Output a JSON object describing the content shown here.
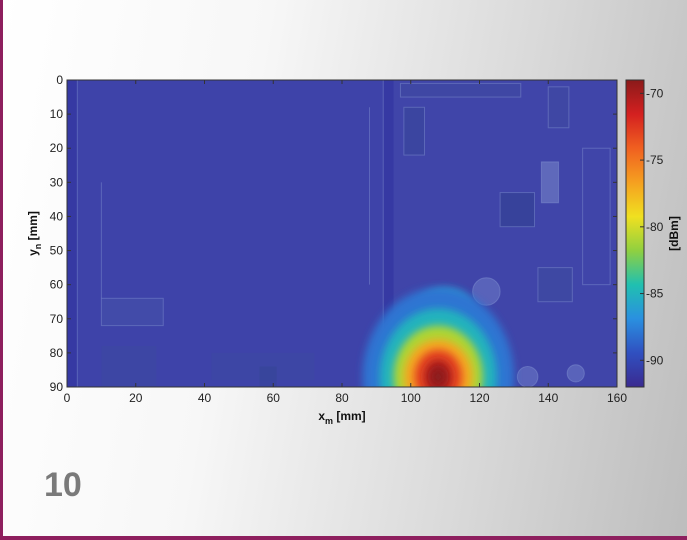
{
  "page": {
    "number": "10",
    "frame_color": "#8e1f5e"
  },
  "chart_data": {
    "type": "heatmap",
    "title": "",
    "xlabel": {
      "main": "x",
      "sub": "m",
      "unit": "[mm]"
    },
    "ylabel": {
      "main": "y",
      "sub": "n",
      "unit": "[mm]"
    },
    "xlim": [
      0,
      160
    ],
    "ylim": [
      0,
      90
    ],
    "y_direction": "down",
    "xticks": [
      "0",
      "20",
      "40",
      "60",
      "80",
      "100",
      "120",
      "140",
      "160"
    ],
    "yticks": [
      "0",
      "10",
      "20",
      "30",
      "40",
      "50",
      "60",
      "70",
      "80",
      "90"
    ],
    "colorbar": {
      "label": "[dBm]",
      "range": [
        -92,
        -69
      ],
      "ticks": [
        "-70",
        "-75",
        "-80",
        "-85",
        "-90"
      ],
      "colors": [
        "#8b1a1a",
        "#d42020",
        "#f06020",
        "#f5a020",
        "#f0e020",
        "#90d040",
        "#20c0b0",
        "#2a90e0",
        "#3050c0",
        "#3a2a90"
      ]
    },
    "background_level_dbm": -91,
    "hotspot": {
      "center_x_mm": 108,
      "center_y_mm": 87,
      "peak_dbm": -69,
      "contours": [
        {
          "level_dbm": -88,
          "radius_x_mm": 22,
          "radius_y_mm": 26
        },
        {
          "level_dbm": -85,
          "radius_x_mm": 17,
          "radius_y_mm": 20
        },
        {
          "level_dbm": -81,
          "radius_x_mm": 13,
          "radius_y_mm": 15
        },
        {
          "level_dbm": -77,
          "radius_x_mm": 10,
          "radius_y_mm": 11
        },
        {
          "level_dbm": -73,
          "radius_x_mm": 7,
          "radius_y_mm": 8
        },
        {
          "level_dbm": -70,
          "radius_x_mm": 4,
          "radius_y_mm": 5
        }
      ]
    },
    "secondary_hotspot": {
      "center_x_mm": 110,
      "center_y_mm": 67,
      "level_dbm": -86,
      "radius_x_mm": 8,
      "radius_y_mm": 6
    },
    "grid": false,
    "legend": "none"
  }
}
